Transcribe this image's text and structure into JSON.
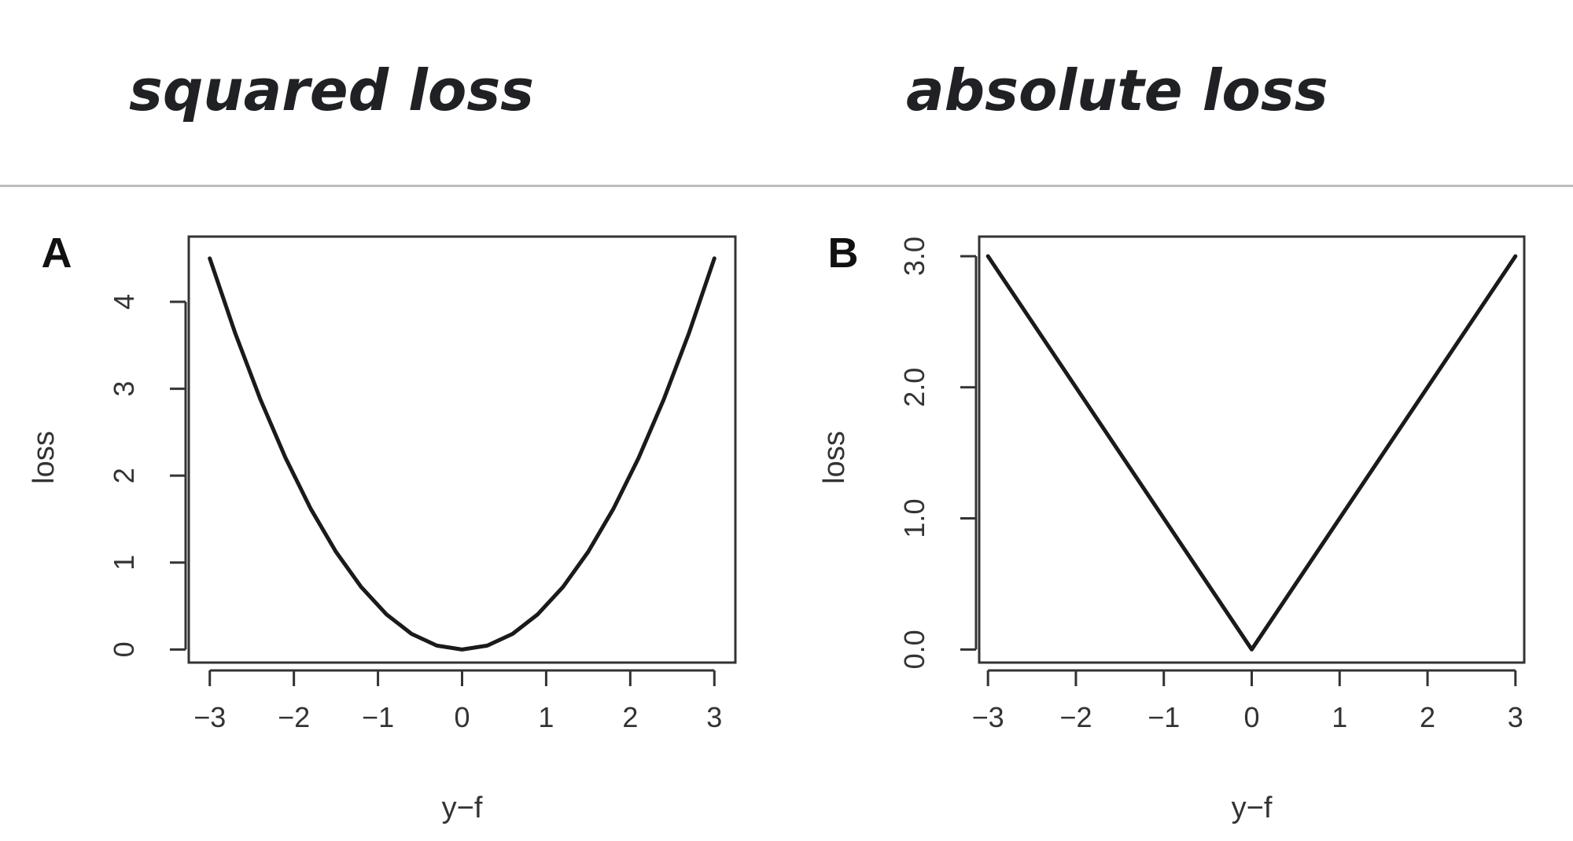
{
  "headings": {
    "left": "squared loss",
    "right": "absolute loss"
  },
  "colors": {
    "heading": "#202124",
    "axis": "#333333",
    "curve": "#1a1a1a",
    "divider": "#bdbdbd"
  },
  "chart_data": [
    {
      "type": "line",
      "panel_label": "A",
      "title": "",
      "xlabel": "y−f",
      "ylabel": "loss",
      "xlim": [
        -3.25,
        3.25
      ],
      "ylim": [
        -0.15,
        4.75
      ],
      "xticks": [
        -3,
        -2,
        -1,
        0,
        1,
        2,
        3
      ],
      "xtick_labels": [
        "−3",
        "−2",
        "−1",
        "0",
        "1",
        "2",
        "3"
      ],
      "yticks": [
        0,
        1,
        2,
        3,
        4
      ],
      "ytick_labels": [
        "0",
        "1",
        "2",
        "3",
        "4"
      ],
      "grid": false,
      "series": [
        {
          "x": [
            -3,
            -2.7,
            -2.4,
            -2.1,
            -1.8,
            -1.5,
            -1.2,
            -0.9,
            -0.6,
            -0.3,
            0,
            0.3,
            0.6,
            0.9,
            1.2,
            1.5,
            1.8,
            2.1,
            2.4,
            2.7,
            3
          ],
          "y": [
            4.5,
            3.645,
            2.88,
            2.205,
            1.62,
            1.125,
            0.72,
            0.405,
            0.18,
            0.045,
            0,
            0.045,
            0.18,
            0.405,
            0.72,
            1.125,
            1.62,
            2.205,
            2.88,
            3.645,
            4.5
          ]
        }
      ]
    },
    {
      "type": "line",
      "panel_label": "B",
      "title": "",
      "xlabel": "y−f",
      "ylabel": "loss",
      "xlim": [
        -3.1,
        3.1
      ],
      "ylim": [
        -0.1,
        3.15
      ],
      "xticks": [
        -3,
        -2,
        -1,
        0,
        1,
        2,
        3
      ],
      "xtick_labels": [
        "−3",
        "−2",
        "−1",
        "0",
        "1",
        "2",
        "3"
      ],
      "yticks": [
        0,
        1,
        2,
        3
      ],
      "ytick_labels": [
        "0.0",
        "1.0",
        "2.0",
        "3.0"
      ],
      "grid": false,
      "series": [
        {
          "x": [
            -3,
            0,
            3
          ],
          "y": [
            3,
            0,
            3
          ]
        }
      ]
    }
  ]
}
